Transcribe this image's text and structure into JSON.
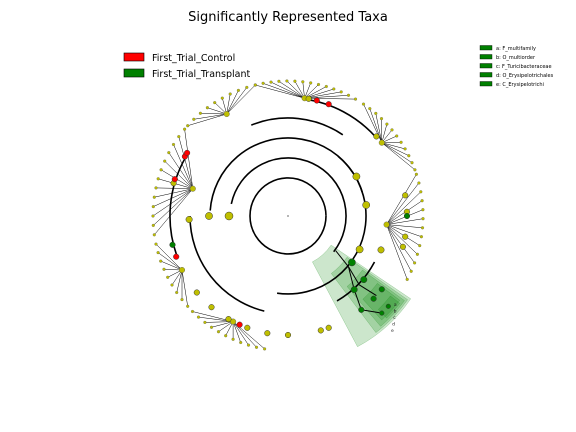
{
  "chart_data": {
    "type": "cladogram",
    "title": "Significantly Represented Taxa",
    "legend": [
      {
        "label": "First_Trial_Control",
        "color": "#ff0000"
      },
      {
        "label": "First_Trial_Transplant",
        "color": "#008000"
      }
    ],
    "clade_legend": [
      {
        "label": "a: F_multifamily",
        "color": "#008000"
      },
      {
        "label": "b: O_multiorder",
        "color": "#008000"
      },
      {
        "label": "c: F_Turicibacteraceae",
        "color": "#008000"
      },
      {
        "label": "d: O_Erysipelotrichales",
        "color": "#008000"
      },
      {
        "label": "e: C_Erysipelotrichi",
        "color": "#008000"
      }
    ],
    "highlight_labels": [
      "a",
      "b",
      "c",
      "d",
      "e"
    ],
    "colors": {
      "neutral": "#bfbf00",
      "control": "#ff0000",
      "transplant": "#008000",
      "edge": "#000000"
    }
  }
}
